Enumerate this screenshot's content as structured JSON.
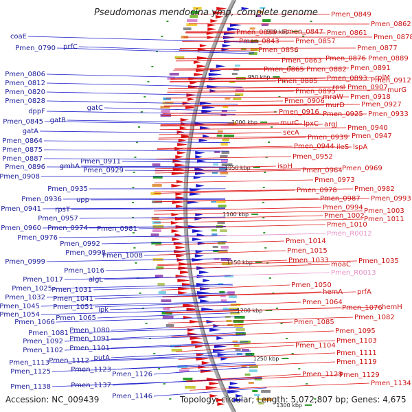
{
  "title": "Pseudomonas mendocina ymp, complete genome",
  "footer": {
    "accession": "Accession: NC_009439",
    "stats": "Topology: circular; Length: 5,072,807 bp; Genes: 4,675"
  },
  "colors": {
    "forward": "#1a1acc",
    "reverse": "#dd1111",
    "rna": "#e58fc6",
    "backbone": "#aaaaaa",
    "tick": "#339933"
  },
  "ticks": [
    "900 kbp",
    "950 kbp",
    "1000 kbp",
    "1050 kbp",
    "1100 kbp",
    "1150 kbp",
    "1200 kbp",
    "1250 kbp",
    "1300 kbp"
  ],
  "left_labels": [
    "coaE",
    "Pmen_0790",
    "prfC",
    "Pmen_0806",
    "Pmen_0812",
    "Pmen_0820",
    "Pmen_0828",
    "dppF",
    "Pmen_0845",
    "gatB",
    "gatC",
    "gatA",
    "Pmen_0864",
    "Pmen_0875",
    "Pmen_0887",
    "Pmen_0896",
    "gmhA",
    "Pmen_0911",
    "Pmen_0929",
    "Pmen_0908",
    "Pmen_0935",
    "Pmen_0936",
    "upp",
    "Pmen_0941",
    "rpsT",
    "Pmen_0957",
    "Pmen_0960",
    "Pmen_0974",
    "Pmen_0981",
    "Pmen_0976",
    "Pmen_0992",
    "Pmen_0998",
    "Pmen_1008",
    "Pmen_0999",
    "Pmen_1016",
    "Pmen_1017",
    "algL",
    "Pmen_1025",
    "Pmen_1031",
    "Pmen_1032",
    "Pmen_1041",
    "Pmen_1045",
    "Pmen_1051",
    "ipk",
    "Pmen_1054",
    "Pmen_1065",
    "Pmen_1066",
    "Pmen_1080",
    "Pmen_1081",
    "Pmen_1091",
    "Pmen_1092",
    "Pmen_1101",
    "Pmen_1102",
    "putA",
    "Pmen_1112",
    "Pmen_1113",
    "Pmen_1123",
    "Pmen_1125",
    "Pmen_1126",
    "Pmen_1137",
    "Pmen_1138",
    "Pmen_1146"
  ],
  "right_labels": [
    "Pmen_0849",
    "Pmen_0862",
    "Pmen_0836",
    "Pmen_0847",
    "Pmen_0861",
    "Pmen_0878",
    "Pmen_0843",
    "Pmen_0857",
    "Pmen_0877",
    "Pmen_0856",
    "Pmen_0863",
    "Pmen_0876",
    "Pmen_0889",
    "Pmen_0865",
    "Pmen_0882",
    "Pmen_0891",
    "rplM",
    "Pmen_0885",
    "Pmen_0893",
    "Pmen_0912",
    "rpsI",
    "Pmen_0907",
    "murG",
    "Pmen_0895",
    "mraW",
    "Pmen_0918",
    "Pmen_0906",
    "murD",
    "Pmen_0927",
    "Pmen_0916",
    "Pmen_0925",
    "Pmen_0933",
    "murC",
    "lpxC",
    "argJ",
    "Pmen_0940",
    "secA",
    "Pmen_0939",
    "Pmen_0947",
    "Pmen_0944",
    "ileS",
    "lspA",
    "Pmen_0952",
    "ispH",
    "Pmen_0964",
    "Pmen_0969",
    "Pmen_0973",
    "Pmen_0978",
    "Pmen_0982",
    "Pmen_0987",
    "Pmen_0993",
    "Pmen_0994",
    "Pmen_1003",
    "Pmen_1002",
    "Pmen_1011",
    "Pmen_1010",
    "Pmen_R0012",
    "Pmen_1014",
    "Pmen_1015",
    "Pmen_1033",
    "moaC",
    "Pmen_1035",
    "Pmen_R0013",
    "Pmen_1050",
    "hemA",
    "prfA",
    "Pmen_1064",
    "Pmen_1076",
    "hemH",
    "Pmen_1082",
    "Pmen_1085",
    "Pmen_1095",
    "Pmen_1103",
    "Pmen_1104",
    "Pmen_1111",
    "Pmen_1119",
    "Pmen_1128",
    "Pmen_1129",
    "Pmen_1134"
  ]
}
